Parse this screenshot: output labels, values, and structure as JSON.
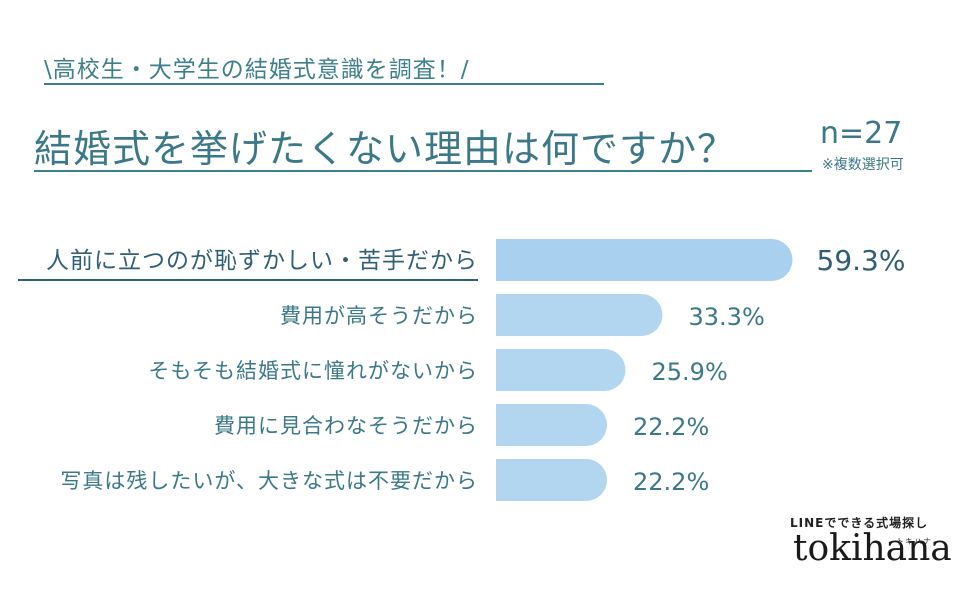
{
  "header": {
    "subtitle": "\\高校生・大学生の結婚式意識を調査！/",
    "title": "結婚式を挙げたくない理由は何ですか？",
    "sample": "n=27",
    "note": "※複数選択可"
  },
  "brand": {
    "tagline": "LINEでできる式場探し",
    "logo": "tokihana",
    "ruby": "トキハナ"
  },
  "colors": {
    "text": "#3b7888",
    "bar_top": "#a9d0ee",
    "bar_other": "#b3d6f0",
    "highlight_text": "#2f5f75"
  },
  "chart_data": {
    "type": "bar",
    "orientation": "horizontal",
    "categories": [
      "人前に立つのが恥ずかしい・苦手だから",
      "費用が高そうだから",
      "そもそも結婚式に憧れがないから",
      "費用に見合わなそうだから",
      "写真は残したいが、大きな式は不要だから"
    ],
    "values": [
      59.3,
      33.3,
      25.9,
      22.2,
      22.2
    ],
    "value_labels": [
      "59.3%",
      "33.3%",
      "25.9%",
      "22.2%",
      "22.2%"
    ],
    "highlight_index": 0,
    "xlim": [
      0,
      100
    ]
  }
}
